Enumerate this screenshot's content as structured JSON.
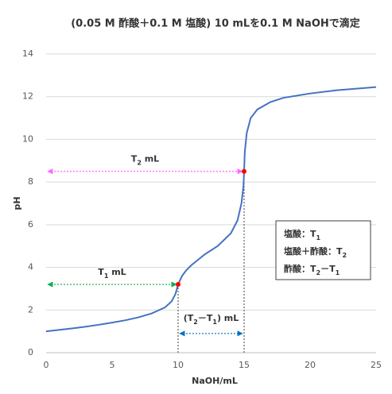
{
  "chart_data": {
    "type": "line",
    "title": "(0.05 M 酢酸＋0.1 M 塩酸) 10 mLを0.1 M NaOHで滴定",
    "xlabel": "NaOH/mL",
    "ylabel": "pH",
    "xlim": [
      0,
      25
    ],
    "ylim": [
      0,
      14
    ],
    "xticks": [
      0,
      5,
      10,
      15,
      20,
      25
    ],
    "yticks": [
      0,
      2,
      4,
      6,
      8,
      10,
      12,
      14
    ],
    "grid": true,
    "series": [
      {
        "color": "#4472c4",
        "x": [
          0,
          1,
          2,
          3,
          4,
          5,
          6,
          7,
          8,
          9,
          9.5,
          9.8,
          10,
          10.3,
          10.6,
          11,
          12,
          13,
          14,
          14.5,
          14.8,
          14.95,
          15,
          15.05,
          15.2,
          15.5,
          16,
          17,
          18,
          20,
          22,
          25
        ],
        "y": [
          1.0,
          1.07,
          1.14,
          1.22,
          1.31,
          1.41,
          1.52,
          1.66,
          1.84,
          2.12,
          2.4,
          2.75,
          3.2,
          3.6,
          3.85,
          4.1,
          4.6,
          5.0,
          5.6,
          6.2,
          7.0,
          7.8,
          8.5,
          9.4,
          10.3,
          11.0,
          11.4,
          11.75,
          11.95,
          12.15,
          12.3,
          12.45
        ]
      }
    ],
    "points": [
      {
        "x": 10,
        "y": 3.2
      },
      {
        "x": 15,
        "y": 8.5
      }
    ],
    "point_color": "#ff0000",
    "guides": [
      {
        "x": 10,
        "y": [
          0,
          3.2
        ]
      },
      {
        "x": 15,
        "y": [
          0,
          8.5
        ]
      }
    ],
    "annotations": [
      {
        "label": [
          "T",
          "2",
          " mL"
        ],
        "x": [
          0,
          15
        ],
        "y": 8.5,
        "color": "#ff66ff"
      },
      {
        "label": [
          "T",
          "1",
          " mL"
        ],
        "x": [
          0,
          10
        ],
        "y": 3.2,
        "color": "#00b050"
      },
      {
        "label": [
          "(T",
          "2",
          "－T",
          "1",
          ") mL"
        ],
        "x": [
          10,
          15
        ],
        "y": 0.9,
        "color": "#0070c0"
      }
    ],
    "legend_box": {
      "lines": [
        [
          "塩酸：T",
          "1"
        ],
        [
          "塩酸＋酢酸：T",
          "2"
        ],
        [
          "酢酸：T",
          "2",
          "－T",
          "1"
        ]
      ]
    }
  }
}
